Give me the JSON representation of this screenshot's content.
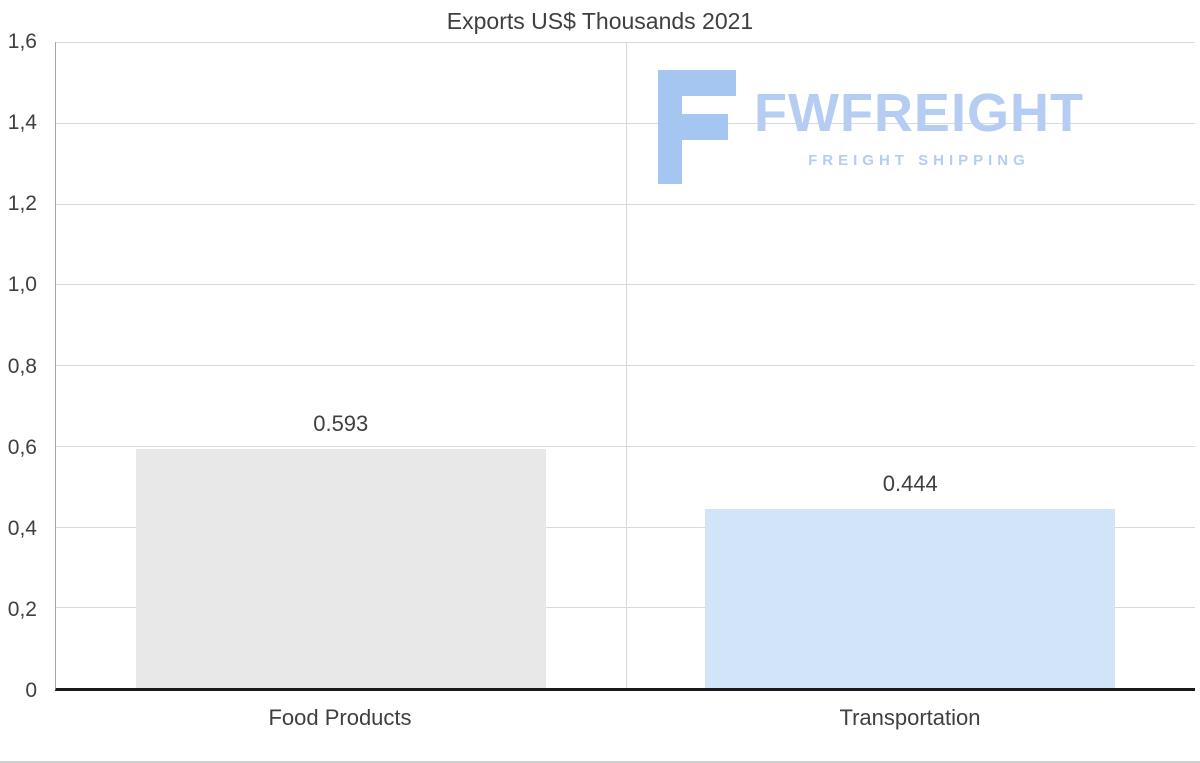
{
  "title": "Exports US$ Thousands 2021",
  "logo": {
    "name": "FWFREIGHT",
    "tagline": "FREIGHT SHIPPING",
    "icon": "fwfreight-f-monogram",
    "text_color": "#b5cdf2",
    "icon_color": "#a5c6f0"
  },
  "chart_data": {
    "type": "bar",
    "title": "Exports US$ Thousands 2021",
    "categories": [
      "Food Products",
      "Transportation"
    ],
    "values": [
      0.593,
      0.444
    ],
    "value_labels": [
      "0.593",
      "0.444"
    ],
    "bar_colors": [
      "#e8e8e8",
      "#d2e4f8"
    ],
    "xlabel": "",
    "ylabel": "",
    "ylim": [
      0,
      1.6
    ],
    "ytick_step": 0.2,
    "ytick_labels": [
      "0",
      "0,2",
      "0,4",
      "0,6",
      "0,8",
      "1,0",
      "1,2",
      "1,4",
      "1,6"
    ],
    "grid": true,
    "legend": false,
    "gridline_color": "#d9d9d9",
    "axis_text_color": "#3f3f3f",
    "bottom_axis_color": "#1a1a1a",
    "left_axis_color": "#a6a6a6"
  }
}
